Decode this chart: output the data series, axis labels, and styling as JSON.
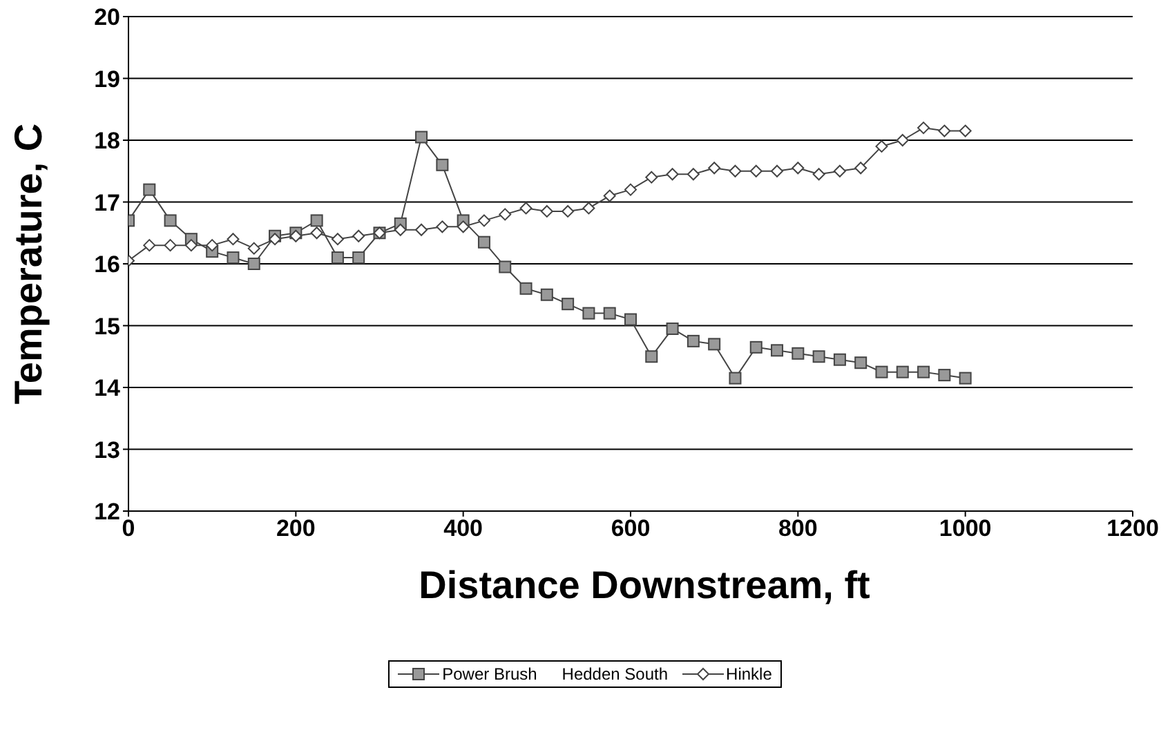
{
  "chart_data": {
    "type": "line",
    "xlabel": "Distance Downstream, ft",
    "ylabel": "Temperature, C",
    "x": [
      0,
      25,
      50,
      75,
      100,
      125,
      150,
      175,
      200,
      225,
      250,
      275,
      300,
      325,
      350,
      375,
      400,
      425,
      450,
      475,
      500,
      525,
      550,
      575,
      600,
      625,
      650,
      675,
      700,
      725,
      750,
      775,
      800,
      825,
      850,
      875,
      900,
      925,
      950,
      975,
      1000
    ],
    "series": [
      {
        "name": "Power Brush",
        "color": "#444444",
        "marker": "square",
        "values": [
          16.7,
          17.2,
          16.7,
          16.4,
          16.2,
          16.1,
          16.0,
          16.45,
          16.5,
          16.7,
          16.1,
          16.1,
          16.5,
          16.65,
          18.05,
          17.6,
          16.7,
          16.35,
          15.95,
          15.6,
          15.5,
          15.35,
          15.2,
          15.2,
          15.1,
          14.5,
          14.95,
          14.75,
          14.7,
          14.15,
          14.65,
          14.6,
          14.55,
          14.5,
          14.45,
          14.4,
          14.25,
          14.25,
          14.25,
          14.2,
          14.15
        ]
      },
      {
        "name": "Hedden South",
        "values": [
          null,
          null,
          null,
          null,
          null,
          null,
          null,
          null,
          null,
          null,
          null,
          null,
          null,
          null,
          null,
          null,
          null,
          null,
          null,
          null,
          null,
          null,
          null,
          null,
          null,
          null,
          null,
          null,
          null,
          null,
          null,
          null,
          null,
          null,
          null,
          null,
          null,
          null,
          null,
          null,
          null
        ]
      },
      {
        "name": "Hinkle",
        "color": "#444444",
        "marker": "diamond",
        "values": [
          16.05,
          16.3,
          16.3,
          16.3,
          16.3,
          16.4,
          16.25,
          16.4,
          16.45,
          16.5,
          16.4,
          16.45,
          16.5,
          16.55,
          16.55,
          16.6,
          16.6,
          16.7,
          16.8,
          16.9,
          16.85,
          16.85,
          16.9,
          17.1,
          17.2,
          17.4,
          17.45,
          17.45,
          17.55,
          17.5,
          17.5,
          17.5,
          17.55,
          17.45,
          17.5,
          17.55,
          17.9,
          18.0,
          18.2,
          18.15,
          18.15
        ]
      }
    ],
    "xlim": [
      0,
      1200
    ],
    "xticks": [
      0,
      200,
      400,
      600,
      800,
      1000,
      1200
    ],
    "ylim": [
      12,
      20
    ],
    "yticks": [
      12,
      13,
      14,
      15,
      16,
      17,
      18,
      19,
      20
    ],
    "grid": "y",
    "legend": "bottom"
  }
}
